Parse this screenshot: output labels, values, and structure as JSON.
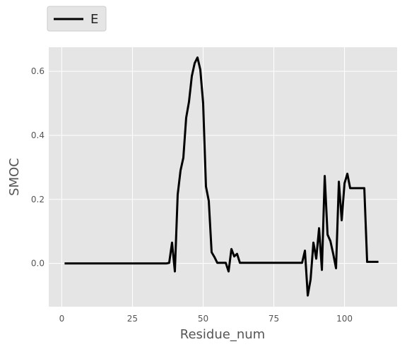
{
  "chart_data": {
    "type": "line",
    "title": "",
    "xlabel": "Residue_num",
    "ylabel": "SMOC",
    "xlim": [
      -4.6,
      118.6
    ],
    "ylim": [
      -0.135,
      0.675
    ],
    "xticks": [
      0,
      25,
      50,
      75,
      100
    ],
    "yticks": [
      0.0,
      0.2,
      0.4,
      0.6
    ],
    "ytick_labels": [
      "0.0",
      "0.2",
      "0.4",
      "0.6"
    ],
    "grid": true,
    "legend_position": "above-left",
    "series": [
      {
        "name": "E",
        "color": "#000000",
        "x": [
          1,
          2,
          3,
          4,
          5,
          6,
          7,
          8,
          9,
          10,
          11,
          12,
          13,
          14,
          15,
          16,
          17,
          18,
          19,
          20,
          21,
          22,
          23,
          24,
          25,
          26,
          27,
          28,
          29,
          30,
          31,
          32,
          33,
          34,
          35,
          36,
          37,
          38,
          39,
          40,
          41,
          42,
          43,
          44,
          45,
          46,
          47,
          48,
          49,
          50,
          51,
          52,
          53,
          54,
          55,
          56,
          57,
          58,
          59,
          60,
          61,
          62,
          63,
          64,
          65,
          66,
          67,
          68,
          69,
          70,
          71,
          72,
          73,
          74,
          75,
          76,
          77,
          78,
          79,
          80,
          81,
          82,
          83,
          84,
          85,
          86,
          87,
          88,
          89,
          90,
          91,
          92,
          93,
          94,
          95,
          96,
          97,
          98,
          99,
          100,
          101,
          102,
          103,
          104,
          105,
          106,
          107,
          108,
          109,
          110,
          111,
          112
        ],
        "y": [
          0,
          0,
          0,
          0,
          0,
          0,
          0,
          0,
          0,
          0,
          0,
          0,
          0,
          0,
          0,
          0,
          0,
          0,
          0,
          0,
          0,
          0,
          0,
          0,
          0,
          0,
          0,
          0,
          0,
          0,
          0,
          0,
          0,
          0,
          0,
          0,
          0,
          0.002,
          0.065,
          -0.025,
          0.215,
          0.29,
          0.33,
          0.455,
          0.505,
          0.585,
          0.625,
          0.643,
          0.605,
          0.5,
          0.24,
          0.195,
          0.035,
          0.02,
          0.002,
          0.002,
          0.002,
          0.002,
          -0.025,
          0.045,
          0.022,
          0.03,
          0.002,
          0.002,
          0.002,
          0.002,
          0.002,
          0.002,
          0.002,
          0.002,
          0.002,
          0.002,
          0.002,
          0.002,
          0.002,
          0.002,
          0.002,
          0.002,
          0.002,
          0.002,
          0.002,
          0.002,
          0.002,
          0.002,
          0.002,
          0.04,
          -0.1,
          -0.05,
          0.065,
          0.015,
          0.11,
          -0.02,
          0.273,
          0.09,
          0.07,
          0.03,
          -0.015,
          0.255,
          0.135,
          0.25,
          0.28,
          0.235,
          0.235,
          0.235,
          0.235,
          0.235,
          0.235,
          0.005,
          0.005,
          0.005,
          0.005,
          0.005
        ]
      }
    ]
  }
}
